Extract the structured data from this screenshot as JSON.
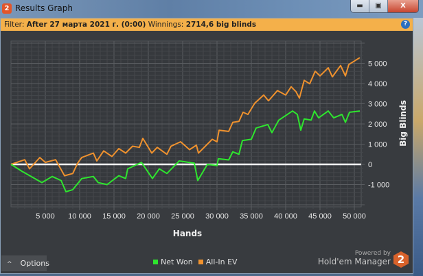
{
  "window": {
    "title": "Results Graph",
    "app_icon": "2",
    "buttons": [
      "minimize",
      "maximize",
      "close"
    ]
  },
  "filter": {
    "label": "Filter:",
    "value": "After 27 марта 2021 г. (0:00)",
    "winnings_label": "Winnings:",
    "winnings_value": "2714,6 big blinds",
    "help_icon": "?"
  },
  "options": {
    "label": "Options",
    "icon": "chevron-up-icon"
  },
  "branding": {
    "powered_by": "Powered by",
    "product": "Hold'em Manager",
    "logo": "2"
  },
  "colors": {
    "net_won": "#2ee62e",
    "all_in_ev": "#f0922e",
    "zero_line": "#ffffff",
    "filter_bar": "#f4b04a",
    "background": "#383b3f"
  },
  "chart_data": {
    "type": "line",
    "xlabel": "Hands",
    "ylabel": "Big Blinds",
    "xlim": [
      0,
      51000
    ],
    "ylim": [
      -2100,
      6100
    ],
    "xticks": [
      5000,
      10000,
      15000,
      20000,
      25000,
      30000,
      35000,
      40000,
      45000,
      50000
    ],
    "xtick_labels": [
      "5 000",
      "10 000",
      "15 000",
      "20 000",
      "25 000",
      "30 000",
      "35 000",
      "40 000",
      "45 000",
      "50 000"
    ],
    "yticks": [
      5000,
      4000,
      3000,
      2000,
      1000,
      0,
      -1000
    ],
    "ytick_labels": [
      "5 000",
      "4 000",
      "3 000",
      "2 000",
      "1 000",
      "0",
      "-1 000"
    ],
    "grid": true,
    "legend_position": "bottom",
    "series": [
      {
        "name": "Net Won",
        "x": [
          0,
          1600,
          4500,
          6000,
          7300,
          8000,
          9000,
          10300,
          12000,
          12700,
          14000,
          15700,
          16700,
          17000,
          19000,
          20600,
          21600,
          22700,
          24500,
          26700,
          27200,
          28600,
          30000,
          30200,
          31700,
          32300,
          33200,
          33700,
          35000,
          35700,
          37400,
          38000,
          39000,
          41000,
          41700,
          42200,
          42700,
          43700,
          44200,
          44800,
          46200,
          47000,
          48200,
          48700,
          49300,
          50800
        ],
        "y": [
          0,
          -340,
          -900,
          -600,
          -800,
          -1350,
          -1250,
          -700,
          -600,
          -900,
          -1000,
          -560,
          -700,
          -220,
          100,
          -700,
          -220,
          -450,
          170,
          60,
          -800,
          0,
          -60,
          280,
          220,
          620,
          500,
          1180,
          1240,
          1800,
          1970,
          1570,
          2190,
          2640,
          2470,
          1690,
          2250,
          2190,
          2640,
          2300,
          2640,
          2300,
          2470,
          2080,
          2580,
          2640
        ]
      },
      {
        "name": "All-In EV",
        "x": [
          0,
          2000,
          2700,
          4200,
          5000,
          6500,
          7800,
          9000,
          9700,
          10300,
          12000,
          12500,
          13500,
          14700,
          15700,
          16700,
          17700,
          18700,
          19200,
          20500,
          21300,
          22700,
          23300,
          24700,
          26000,
          27000,
          27300,
          28300,
          29300,
          30000,
          30300,
          31700,
          32300,
          33200,
          33800,
          34500,
          35500,
          36800,
          37500,
          38800,
          40000,
          40800,
          41500,
          42000,
          42700,
          43500,
          44300,
          45000,
          46200,
          46800,
          48000,
          48700,
          49200,
          50800
        ],
        "y": [
          0,
          230,
          -220,
          340,
          100,
          230,
          -560,
          -450,
          60,
          340,
          560,
          170,
          670,
          390,
          780,
          560,
          900,
          840,
          1290,
          560,
          840,
          500,
          900,
          1120,
          730,
          950,
          560,
          900,
          1240,
          1120,
          1690,
          1630,
          2080,
          2130,
          2580,
          2470,
          3030,
          3430,
          3150,
          3650,
          3430,
          3840,
          3600,
          3280,
          4160,
          3990,
          4610,
          4380,
          4780,
          4330,
          4890,
          4380,
          4940,
          5280
        ]
      }
    ]
  }
}
